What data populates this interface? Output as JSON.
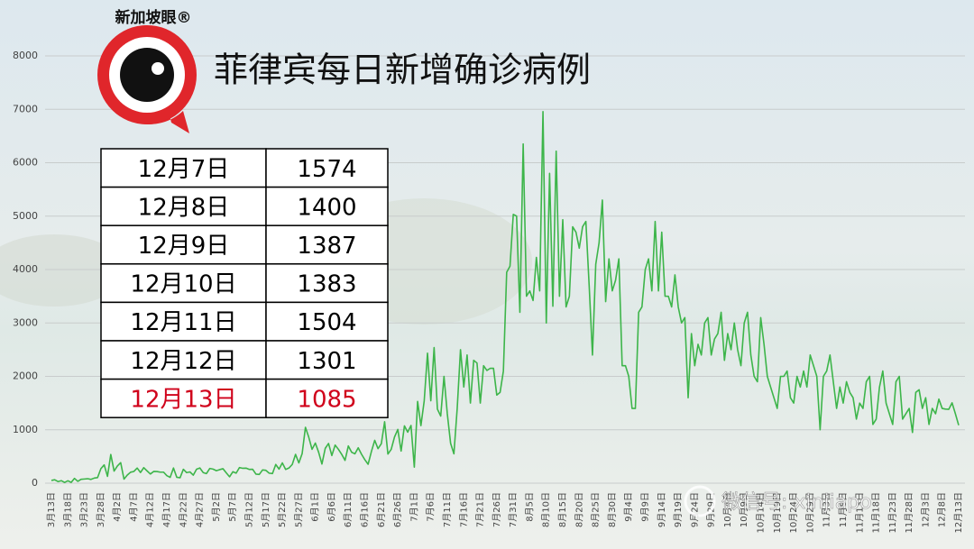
{
  "logo": "新加坡眼®",
  "watermark": "微信号: xinjiapo",
  "table": {
    "rows": [
      [
        "12月7日",
        1574
      ],
      [
        "12月8日",
        1400
      ],
      [
        "12月9日",
        1387
      ],
      [
        "12月10日",
        1383
      ],
      [
        "12月11日",
        1504
      ],
      [
        "12月12日",
        1301
      ],
      [
        "12月13日",
        1085
      ]
    ]
  },
  "chart_data": {
    "type": "line",
    "title": "菲律宾每日新增确诊病例",
    "color": "#3db54a",
    "grid": true,
    "ylim": [
      0,
      8000
    ],
    "yticks": [
      0,
      1000,
      2000,
      3000,
      4000,
      5000,
      6000,
      7000,
      8000
    ],
    "categories": [
      "3月13日",
      null,
      null,
      null,
      null,
      "3月18日",
      null,
      null,
      null,
      null,
      "3月23日",
      null,
      null,
      null,
      null,
      "3月28日",
      null,
      null,
      null,
      null,
      "4月2日",
      null,
      null,
      null,
      null,
      "4月7日",
      null,
      null,
      null,
      null,
      "4月12日",
      null,
      null,
      null,
      null,
      "4月17日",
      null,
      null,
      null,
      null,
      "4月22日",
      null,
      null,
      null,
      null,
      "4月27日",
      null,
      null,
      null,
      null,
      "5月2日",
      null,
      null,
      null,
      null,
      "5月7日",
      null,
      null,
      null,
      null,
      "5月12日",
      null,
      null,
      null,
      null,
      "5月17日",
      null,
      null,
      null,
      null,
      "5月22日",
      null,
      null,
      null,
      null,
      "5月27日",
      null,
      null,
      null,
      null,
      "6月1日",
      null,
      null,
      null,
      null,
      "6月6日",
      null,
      null,
      null,
      null,
      "6月11日",
      null,
      null,
      null,
      null,
      "6月16日",
      null,
      null,
      null,
      null,
      "6月21日",
      null,
      null,
      null,
      null,
      "6月26日",
      null,
      null,
      null,
      null,
      "7月1日",
      null,
      null,
      null,
      null,
      "7月6日",
      null,
      null,
      null,
      null,
      "7月11日",
      null,
      null,
      null,
      null,
      "7月16日",
      null,
      null,
      null,
      null,
      "7月21日",
      null,
      null,
      null,
      null,
      "7月26日",
      null,
      null,
      null,
      null,
      "7月31日",
      null,
      null,
      null,
      null,
      "8月5日",
      null,
      null,
      null,
      null,
      "8月10日",
      null,
      null,
      null,
      null,
      "8月15日",
      null,
      null,
      null,
      null,
      "8月20日",
      null,
      null,
      null,
      null,
      "8月25日",
      null,
      null,
      null,
      null,
      "8月30日",
      null,
      null,
      null,
      null,
      "9月4日",
      null,
      null,
      null,
      null,
      "9月9日",
      null,
      null,
      null,
      null,
      "9月14日",
      null,
      null,
      null,
      null,
      "9月19日",
      null,
      null,
      null,
      null,
      "9月24日",
      null,
      null,
      null,
      null,
      "9月29日",
      null,
      null,
      null,
      null,
      "10月4日",
      null,
      null,
      null,
      null,
      "10月9日",
      null,
      null,
      null,
      null,
      "10月14日",
      null,
      null,
      null,
      null,
      "10月19日",
      null,
      null,
      null,
      null,
      "10月24日",
      null,
      null,
      null,
      null,
      "10月29日",
      null,
      null,
      null,
      null,
      "11月3日",
      null,
      null,
      null,
      null,
      "11月8日",
      null,
      null,
      null,
      null,
      "11月13日",
      null,
      null,
      null,
      null,
      "11月18日",
      null,
      null,
      null,
      null,
      "11月23日",
      null,
      null,
      null,
      null,
      "11月28日",
      null,
      null,
      null,
      null,
      "12月3日",
      null,
      null,
      null,
      null,
      "12月8日",
      null,
      null,
      null,
      null,
      "12月13日"
    ],
    "values": [
      52,
      64,
      30,
      47,
      14,
      45,
      15,
      90,
      35,
      73,
      78,
      84,
      71,
      96,
      105,
      272,
      343,
      128,
      538,
      227,
      322,
      385,
      76,
      152,
      206,
      220,
      284,
      200,
      291,
      230,
      172,
      220,
      218,
      207,
      207,
      140,
      110,
      284,
      111,
      102,
      260,
      198,
      211,
      150,
      262,
      285,
      199,
      180,
      276,
      264,
      234,
      254,
      271,
      195,
      120,
      215,
      188,
      293,
      279,
      282,
      258,
      260,
      170,
      163,
      248,
      241,
      188,
      180,
      350,
      264,
      380,
      258,
      284,
      350,
      539,
      380,
      552,
      1046,
      862,
      634,
      751,
      579,
      359,
      652,
      744,
      518,
      713,
      634,
      539,
      427,
      697,
      580,
      550,
      663,
      542,
      440,
      355,
      594,
      802,
      646,
      739,
      1150,
      545,
      634,
      865,
      1006,
      602,
      1073,
      956,
      1080,
      301,
      1531,
      1078,
      1540,
      2434,
      1544,
      2539,
      1387,
      1257,
      2000,
      1300,
      747,
      550,
      1400,
      2500,
      1800,
      2400,
      1500,
      2300,
      2250,
      1500,
      2200,
      2110,
      2150,
      2150,
      1650,
      1700,
      2100,
      3950,
      4063,
      5032,
      5000,
      3200,
      6352,
      3500,
      3600,
      3420,
      4226,
      3600,
      6958,
      3000,
      5800,
      3314,
      6216,
      3500,
      4933,
      3300,
      3500,
      4800,
      4700,
      4400,
      4800,
      4900,
      3700,
      2400,
      4100,
      4500,
      5300,
      3400,
      4200,
      3600,
      3800,
      4200,
      2200,
      2200,
      2000,
      1400,
      1400,
      3200,
      3300,
      4000,
      4200,
      3600,
      4900,
      3600,
      4700,
      3500,
      3500,
      3300,
      3900,
      3300,
      3000,
      3100,
      1600,
      2800,
      2200,
      2600,
      2400,
      3000,
      3100,
      2400,
      2700,
      2800,
      3200,
      2300,
      2800,
      2500,
      3000,
      2500,
      2200,
      3000,
      3200,
      2400,
      2000,
      1900,
      3100,
      2600,
      2000,
      1800,
      1600,
      1400,
      2000,
      2000,
      2100,
      1600,
      1500,
      2000,
      1800,
      2100,
      1800,
      2400,
      2200,
      2000,
      1000,
      2000,
      2100,
      2400,
      1900,
      1400,
      1800,
      1500,
      1900,
      1700,
      1600,
      1200,
      1500,
      1400,
      1900,
      2000,
      1100,
      1200,
      1800,
      2100,
      1500,
      1300,
      1100,
      1900,
      2000,
      1200,
      1300,
      1400,
      950,
      1700,
      1750,
      1400,
      1600,
      1100,
      1400,
      1300,
      1574,
      1400,
      1387,
      1383,
      1504,
      1301,
      1085
    ]
  }
}
